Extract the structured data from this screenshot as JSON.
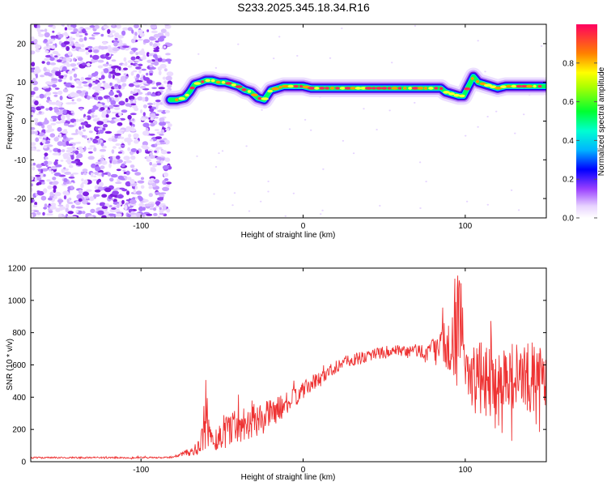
{
  "title": "S233.2025.345.18.34.R16",
  "chart_data": [
    {
      "type": "heatmap",
      "xlabel": "Height of straight line (km)",
      "ylabel": "Frequency (Hz)",
      "xlim": [
        -168,
        150
      ],
      "ylim": [
        -25,
        25
      ],
      "xticks": [
        -100,
        0,
        100
      ],
      "yticks": [
        -20,
        -10,
        0,
        10,
        20
      ],
      "grid": false,
      "colorbar": {
        "label": "Normalized spectral amplitude",
        "range": [
          0,
          1
        ],
        "ticks": [
          0.0,
          0.2,
          0.4,
          0.6,
          0.8
        ],
        "colors": [
          "#ffffff",
          "#d9b8ff",
          "#8a2be2",
          "#0000ff",
          "#00e5ff",
          "#00ff40",
          "#ffff00",
          "#ff8000",
          "#ff0055"
        ]
      },
      "noise_region_x": [
        -168,
        -82
      ],
      "ridge": {
        "x": [
          -82,
          -78,
          -73,
          -70,
          -67,
          -63,
          -60,
          -56,
          -52,
          -48,
          -44,
          -40,
          -36,
          -32,
          -28,
          -24,
          -20,
          -16,
          -12,
          -8,
          -4,
          0,
          5,
          10,
          15,
          20,
          25,
          30,
          35,
          40,
          45,
          50,
          55,
          60,
          65,
          70,
          75,
          80,
          85,
          88,
          92,
          96,
          99,
          102,
          105,
          108,
          112,
          116,
          120,
          125,
          130,
          135,
          140,
          145,
          150
        ],
        "y": [
          5.5,
          5.5,
          6,
          7.5,
          9.5,
          10,
          10.5,
          10.5,
          10,
          10,
          9.5,
          9,
          8,
          7.5,
          6,
          5.5,
          8,
          8.5,
          9,
          9,
          9,
          9,
          8.5,
          8.5,
          8.5,
          8.5,
          8.5,
          8.5,
          8.5,
          8.5,
          8.5,
          8.5,
          8.5,
          8.5,
          8.5,
          8.5,
          8.5,
          8.5,
          8.5,
          7.5,
          7,
          6.5,
          6.5,
          9,
          11.5,
          10,
          9.5,
          9,
          8.5,
          9,
          9,
          9,
          9,
          9,
          9
        ]
      }
    },
    {
      "type": "line",
      "xlabel": "Height of straight line (km)",
      "ylabel": "SNR (10 * v/v)",
      "xlim": [
        -168,
        150
      ],
      "ylim": [
        0,
        1200
      ],
      "xticks": [
        -100,
        0,
        100
      ],
      "yticks": [
        0,
        200,
        400,
        600,
        800,
        1000,
        1200
      ],
      "grid": false,
      "color": "#ee3333",
      "series": [
        {
          "x": [
            -168,
            -140,
            -110,
            -85,
            -80,
            -75,
            -70,
            -65,
            -62,
            -60,
            -58,
            -55,
            -50,
            -45,
            -40,
            -35,
            -30,
            -25,
            -20,
            -15,
            -10,
            -5,
            0,
            5,
            10,
            15,
            20,
            25,
            30,
            35,
            40,
            45,
            50,
            55,
            60,
            65,
            70,
            75,
            80,
            85,
            88,
            90,
            92,
            94,
            96,
            98,
            100,
            102,
            105,
            108,
            112,
            116,
            120,
            125,
            130,
            135,
            140,
            145,
            150
          ],
          "y": [
            25,
            25,
            25,
            25,
            30,
            45,
            60,
            80,
            130,
            300,
            180,
            120,
            180,
            220,
            230,
            250,
            250,
            270,
            300,
            330,
            360,
            400,
            440,
            480,
            510,
            550,
            590,
            620,
            630,
            640,
            660,
            670,
            680,
            680,
            680,
            680,
            690,
            680,
            690,
            700,
            720,
            700,
            750,
            820,
            900,
            820,
            620,
            580,
            520,
            500,
            520,
            500,
            500,
            520,
            520,
            520,
            520,
            520,
            500
          ],
          "noise": [
            5,
            5,
            5,
            5,
            6,
            15,
            25,
            40,
            90,
            250,
            80,
            80,
            110,
            120,
            120,
            110,
            110,
            100,
            90,
            80,
            70,
            60,
            55,
            50,
            50,
            45,
            45,
            40,
            40,
            40,
            40,
            40,
            40,
            40,
            40,
            45,
            45,
            50,
            80,
            120,
            200,
            160,
            220,
            280,
            300,
            250,
            150,
            200,
            220,
            240,
            240,
            220,
            220,
            220,
            220,
            220,
            220,
            220,
            220
          ]
        }
      ]
    }
  ]
}
